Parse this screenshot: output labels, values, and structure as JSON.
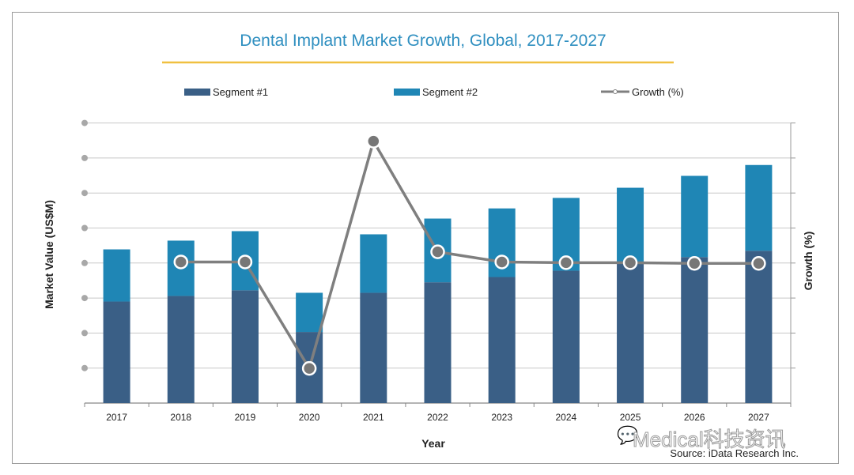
{
  "chart_data": {
    "type": "bar",
    "stacked": true,
    "title": "Dental Implant Market Growth, Global, 2017-2027",
    "xlabel": "Year",
    "ylabel": "Market Value (US$M)",
    "y2label": "Growth (%)",
    "source": "Source: iData Research Inc.",
    "watermark": "Medical科技资讯",
    "axis_tick_labels_shown": false,
    "value_units_note": "no tick labels printed; values in gridline steps (0 = baseline, 8 = top gridline)",
    "ylim": [
      0,
      8
    ],
    "grid": true,
    "legend_position": "top",
    "categories": [
      "2017",
      "2018",
      "2019",
      "2020",
      "2021",
      "2022",
      "2023",
      "2024",
      "2025",
      "2026",
      "2027"
    ],
    "series": [
      {
        "name": "Segment #1",
        "type": "bar",
        "color": "#3a5f86",
        "values": [
          2.9,
          3.06,
          3.22,
          2.03,
          3.15,
          3.45,
          3.6,
          3.78,
          3.99,
          4.17,
          4.35
        ]
      },
      {
        "name": "Segment #2",
        "type": "bar",
        "color": "#1f86b5",
        "values": [
          1.49,
          1.58,
          1.69,
          1.12,
          1.67,
          1.82,
          1.96,
          2.08,
          2.16,
          2.32,
          2.45
        ]
      },
      {
        "name": "Growth (%)",
        "type": "line",
        "axis": "right",
        "color": "#7f7f7f",
        "values": [
          null,
          4.03,
          4.03,
          0.99,
          7.48,
          4.32,
          4.03,
          4.01,
          4.01,
          3.99,
          3.99
        ]
      }
    ],
    "colors": {
      "title": "#2f8fc0",
      "title_underline": "#f0c040",
      "grid": "#c8c8c8",
      "axis_dot": "#a8a8a8"
    }
  }
}
